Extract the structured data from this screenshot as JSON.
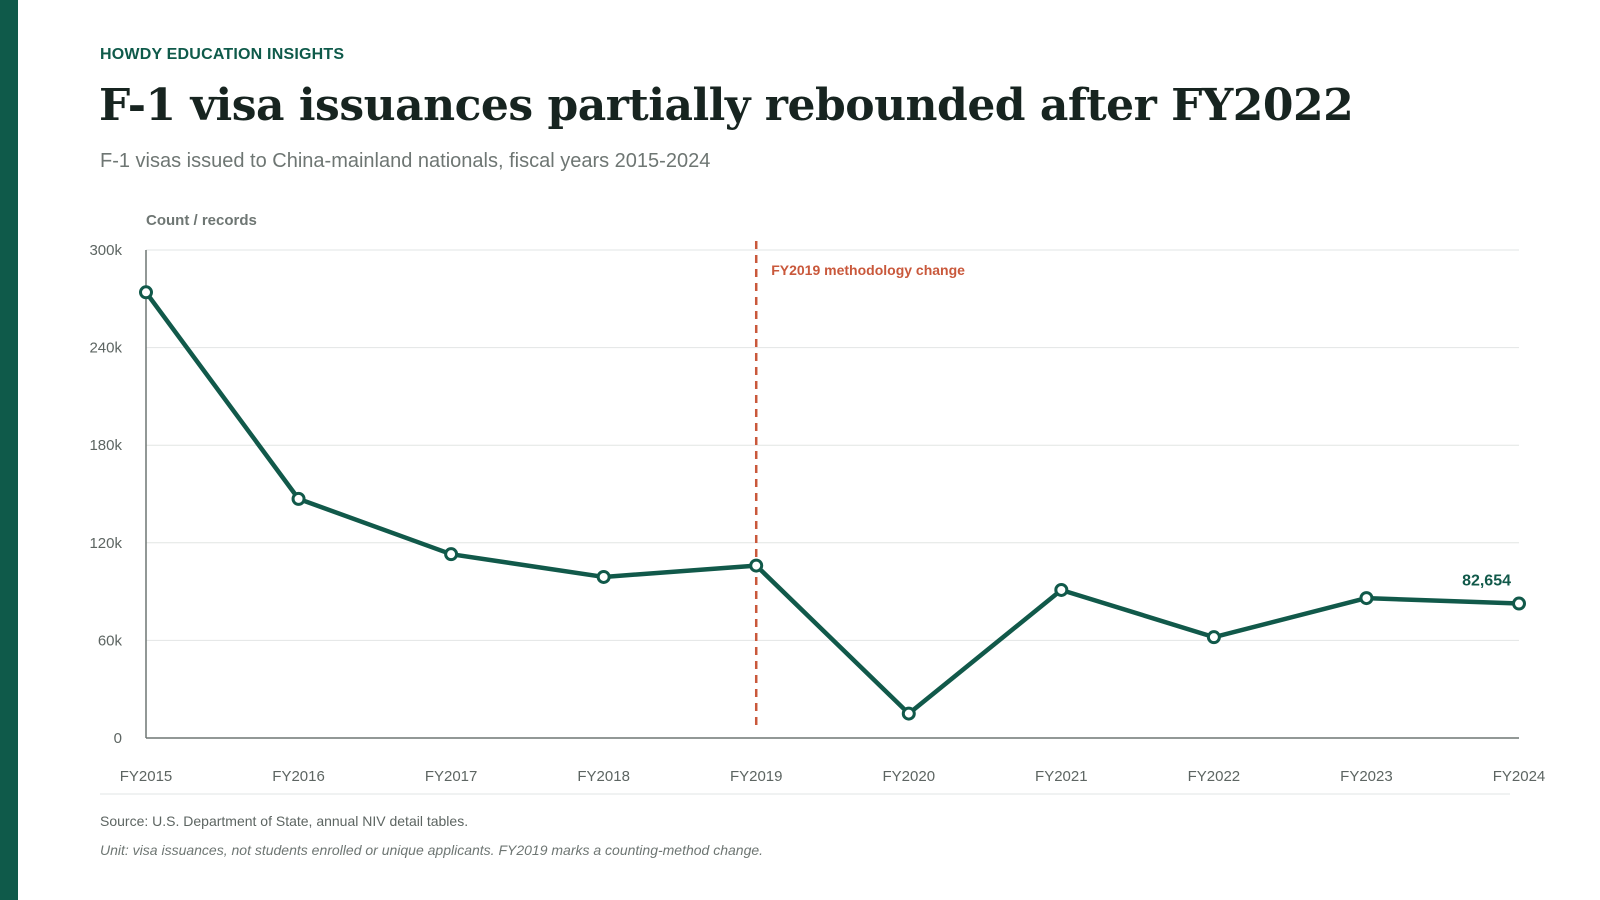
{
  "header": {
    "kicker": "HOWDY EDUCATION INSIGHTS",
    "title": "F-1 visa issuances partially rebounded after FY2022",
    "subtitle": "F-1 visas issued to China-mainland nationals, fiscal years 2015-2024"
  },
  "footer": {
    "source": "Source: U.S. Department of State, annual NIV detail tables.",
    "note": "Unit: visa issuances, not students enrolled or unique applicants. FY2019 marks a counting-method change."
  },
  "colors": {
    "brand": "#0f5a4a",
    "line": "#11594a",
    "annotation": "#c9583b",
    "grid": "#e2e5e4",
    "axis": "#6e7673",
    "tick_text": "#5d6562"
  },
  "chart_data": {
    "type": "line",
    "ylabel": "Count / records",
    "ylim": [
      0,
      300000
    ],
    "yticks": [
      0,
      60000,
      120000,
      180000,
      240000,
      300000
    ],
    "ytick_labels": [
      "0",
      "60k",
      "120k",
      "180k",
      "240k",
      "300k"
    ],
    "categories": [
      "FY2015",
      "FY2016",
      "FY2017",
      "FY2018",
      "FY2019",
      "FY2020",
      "FY2021",
      "FY2022",
      "FY2023",
      "FY2024"
    ],
    "series": [
      {
        "values": [
          274000,
          147000,
          113000,
          99000,
          106000,
          15000,
          91000,
          62000,
          86000,
          82654
        ]
      }
    ],
    "grid": true,
    "annotations": [
      {
        "type": "vline",
        "x": "FY2019",
        "text": "FY2019 methodology change"
      },
      {
        "type": "point-label",
        "x": "FY2024",
        "text": "82,654"
      }
    ]
  }
}
